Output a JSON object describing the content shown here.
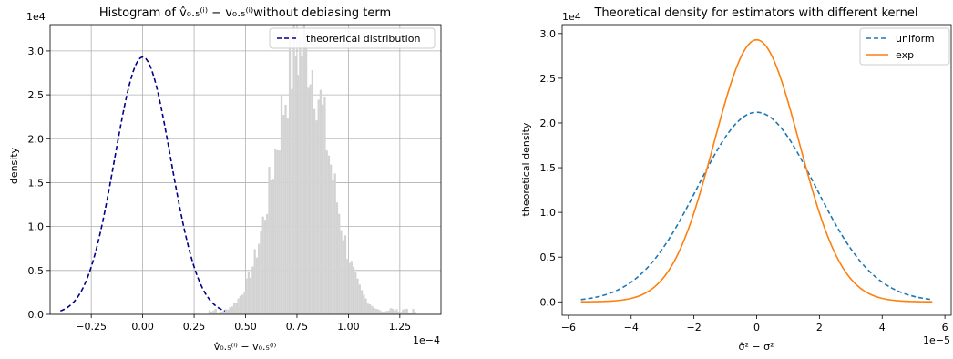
{
  "chart_data": [
    {
      "type": "histogram",
      "title": "Histogram of v̂₀.₅⁽ⁱ⁾ − v₀.₅⁽ⁱ⁾without debiasing term",
      "xlabel": "v̂₀.₅⁽ⁱ⁾ − v₀.₅⁽ⁱ⁾",
      "ylabel": "density",
      "x_offset_label": "1e−4",
      "y_offset_label": "1e4",
      "xlim": [
        -0.45,
        1.45
      ],
      "ylim": [
        0,
        3.3
      ],
      "xticks": [
        -0.25,
        0.0,
        0.25,
        0.5,
        0.75,
        1.0,
        1.25
      ],
      "xtick_labels": [
        "−0.25",
        "0.00",
        "0.25",
        "0.50",
        "0.75",
        "1.00",
        "1.25"
      ],
      "yticks": [
        0,
        0.5,
        1.0,
        1.5,
        2.0,
        2.5,
        3.0
      ],
      "ytick_labels": [
        "0.0",
        "0.5",
        "1.0",
        "1.5",
        "2.0",
        "2.5",
        "3.0"
      ],
      "grid": true,
      "legend_position": "top-right",
      "histogram": {
        "color": "#d3d3d3",
        "mean": 0.775,
        "sd": 0.13,
        "peak": 3.05,
        "x_start": 0.32,
        "x_end": 1.33,
        "bin_width": 0.01
      },
      "series": [
        {
          "name": "theorerical distribution",
          "style": "dashed",
          "color": "#00008b",
          "mean": 0.0,
          "sd": 0.136,
          "peak": 2.93,
          "x_range": [
            -0.4,
            0.4
          ]
        }
      ]
    },
    {
      "type": "line",
      "title": "Theoretical density for estimators with different kernel",
      "xlabel": "σ̂² − σ²",
      "ylabel": "theoretical density",
      "x_offset_label": "1e−5",
      "y_offset_label": "1e4",
      "xlim": [
        -6.2,
        6.2
      ],
      "ylim": [
        -0.15,
        3.1
      ],
      "xticks": [
        -6,
        -4,
        -2,
        0,
        2,
        4,
        6
      ],
      "xtick_labels": [
        "−6",
        "−4",
        "−2",
        "0",
        "2",
        "4",
        "6"
      ],
      "yticks": [
        0,
        0.5,
        1.0,
        1.5,
        2.0,
        2.5,
        3.0
      ],
      "ytick_labels": [
        "0.0",
        "0.5",
        "1.0",
        "1.5",
        "2.0",
        "2.5",
        "3.0"
      ],
      "grid": false,
      "legend_position": "top-right",
      "series": [
        {
          "name": "uniform",
          "style": "dashed",
          "color": "#1f77b4",
          "peak": 2.12,
          "sd": 1.88,
          "x_range": [
            -5.6,
            5.6
          ]
        },
        {
          "name": "exp",
          "style": "solid",
          "color": "#ff7f0e",
          "peak": 2.93,
          "sd": 1.36,
          "x_range": [
            -5.6,
            5.6
          ]
        }
      ]
    }
  ]
}
